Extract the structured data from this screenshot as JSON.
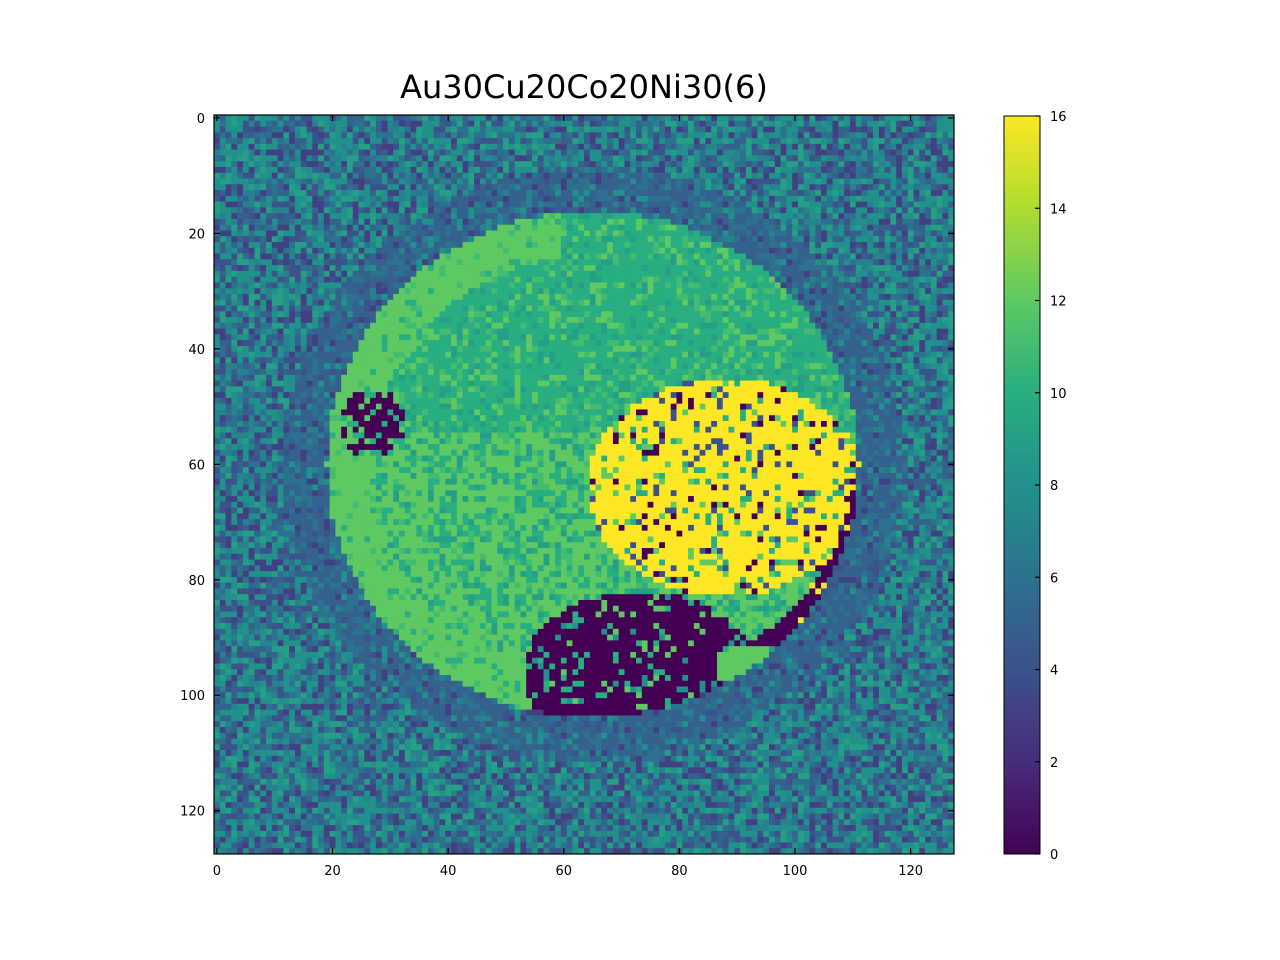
{
  "chart_data": {
    "type": "heatmap",
    "title": "Au30Cu20Co20Ni30(6)",
    "xlabel": "",
    "ylabel": "",
    "grid_size": [
      128,
      128
    ],
    "xlim": [
      0,
      127
    ],
    "ylim": [
      127,
      0
    ],
    "x_ticks": [
      0,
      20,
      40,
      60,
      80,
      100,
      120
    ],
    "y_ticks": [
      0,
      20,
      40,
      60,
      80,
      100,
      120
    ],
    "colorbar": {
      "min": 0,
      "max": 16,
      "ticks": [
        0,
        2,
        4,
        6,
        8,
        10,
        12,
        14,
        16
      ],
      "colormap": "viridis"
    },
    "grid": false,
    "regions": [
      {
        "label": "background",
        "value_range": [
          3,
          9
        ],
        "description_value": 6
      },
      {
        "label": "outer ring",
        "center": [
          87,
          63
        ],
        "radius": 55,
        "value": 5
      },
      {
        "label": "disc",
        "center": [
          65,
          60
        ],
        "radius": 45,
        "value": 10
      },
      {
        "label": "upper disc",
        "center": [
          72,
          38
        ],
        "value": 10
      },
      {
        "label": "left rim",
        "center": [
          25,
          65
        ],
        "value": 12
      },
      {
        "label": "bright region",
        "center": [
          88,
          65
        ],
        "value": 16
      },
      {
        "label": "dark region",
        "center": [
          72,
          95
        ],
        "value": 0
      },
      {
        "label": "dark arc",
        "center": [
          105,
          80
        ],
        "value": 0
      },
      {
        "label": "dark patch left",
        "center": [
          27,
          53
        ],
        "value": 0
      },
      {
        "label": "small green patch",
        "center": [
          92,
          96
        ],
        "value": 12
      }
    ]
  },
  "colors": {
    "viridis_stops": [
      "#440154",
      "#472d7b",
      "#3b528b",
      "#2c728e",
      "#21918c",
      "#28ae80",
      "#5ec962",
      "#addc30",
      "#fde725"
    ]
  }
}
